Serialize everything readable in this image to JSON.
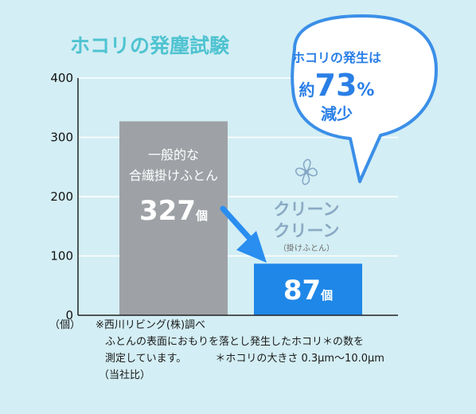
{
  "chart_data": {
    "type": "bar",
    "title": "ホコリの発塵試験",
    "categories": [
      "一般的な合繊掛けふとん",
      "クリーンクリーン（掛けふとん）"
    ],
    "values": [
      327,
      87
    ],
    "value_labels": [
      "327個",
      "87個"
    ],
    "ylim": [
      0,
      400
    ],
    "yticks": [
      0,
      100,
      200,
      300,
      400
    ],
    "ylabel": "（個）",
    "grid": true,
    "colors": {
      "bar1": "#9ea2a6",
      "bar2": "#1f87e8",
      "title": "#4fc3d1",
      "bg": "#d3eef4"
    }
  },
  "bar1": {
    "line1": "一般的な",
    "line2": "合繊掛けふとん",
    "value": "327",
    "unit": "個"
  },
  "bar2": {
    "value": "87",
    "unit": "個"
  },
  "logo": {
    "line1": "クリーン",
    "line2": "クリーン",
    "sub": "（掛けふとん）"
  },
  "bubble": {
    "line1": "ホコリの発生は",
    "prefix": "約",
    "number": "73",
    "percent": "%",
    "line3": "減少"
  },
  "footnote": {
    "unit": "（個）",
    "line1": "※西川リビング(株)調べ",
    "line2": "ふとんの表面におもりを落とし発生したホコリ＊の数を",
    "line3a": "測定しています。",
    "line3b": "＊ホコリの大きさ 0.3μm〜10.0μm",
    "line4": "（当社比）"
  }
}
